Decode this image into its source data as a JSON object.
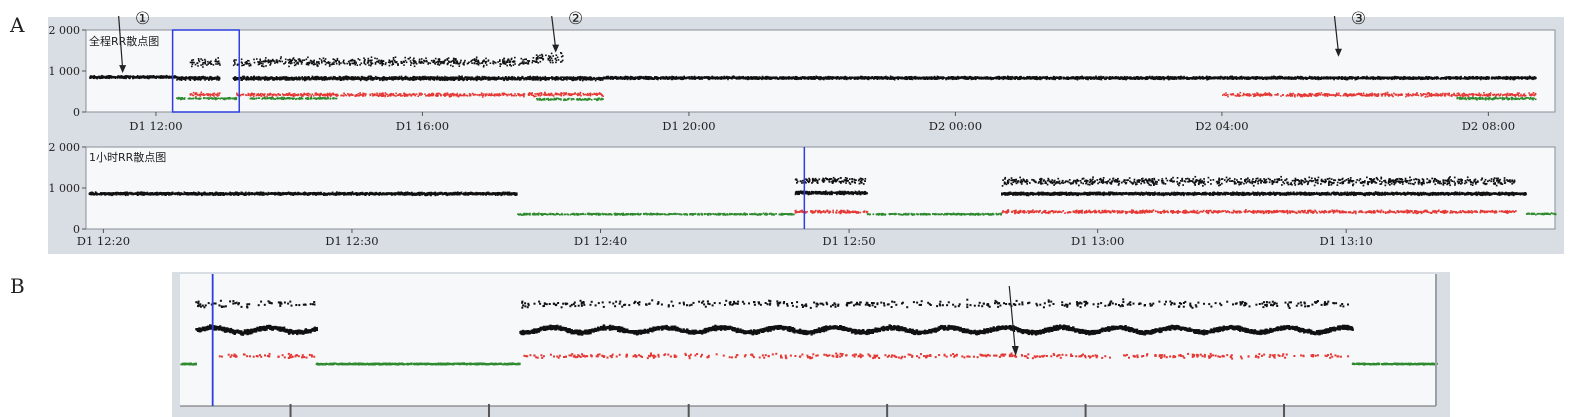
{
  "labels": {
    "panel_a": "A",
    "panel_b": "B"
  },
  "colors": {
    "panel_bg": "#d9dde4",
    "plot_bg": "#f7f8fa",
    "normal_beats": "#111111",
    "red_beats": "#e53935",
    "green_beats": "#2e8b2e",
    "cursor": "#2d3ee0"
  },
  "chart_data": [
    {
      "type": "scatter",
      "title": "全程RR散点图",
      "ylim": [
        0,
        2000
      ],
      "y_ticks": [
        "2 000",
        "1 000",
        "0"
      ],
      "x_ticks": [
        "D1 12:00",
        "D1 16:00",
        "D1 20:00",
        "D2 00:00",
        "D2 04:00",
        "D2 08:00"
      ],
      "x_tick_hours": [
        12,
        16,
        20,
        24,
        28,
        32
      ],
      "xlim_hours": [
        10.95,
        33.0
      ],
      "selection_window_hours": [
        12.25,
        13.25
      ],
      "markers": [
        {
          "label": "①",
          "x_hour": 11.5,
          "y": 850
        },
        {
          "label": "②",
          "x_hour": 18.0,
          "y": 1350
        },
        {
          "label": "③",
          "x_hour": 29.75,
          "y": 1250
        }
      ],
      "series": [
        {
          "name": "",
          "color": "normal",
          "segments": [
            [
              11.0,
              12.3,
              850,
              40
            ],
            [
              12.3,
              12.95,
              820,
              60
            ],
            [
              13.15,
              18.7,
              820,
              60
            ],
            [
              18.7,
              32.7,
              830,
              45
            ]
          ]
        },
        {
          "name": "",
          "color": "normal",
          "segments": [
            [
              12.5,
              12.95,
              1200,
              140
            ],
            [
              13.15,
              17.7,
              1220,
              140
            ],
            [
              17.7,
              18.1,
              1320,
              150
            ]
          ]
        },
        {
          "name": "",
          "color": "red",
          "segments": [
            [
              12.5,
              12.95,
              430,
              60
            ],
            [
              13.2,
              17.7,
              420,
              60
            ],
            [
              17.7,
              18.7,
              430,
              60
            ],
            [
              28.0,
              32.7,
              420,
              60
            ]
          ]
        },
        {
          "name": "",
          "color": "green",
          "segments": [
            [
              12.3,
              13.2,
              330,
              30
            ],
            [
              13.4,
              14.7,
              330,
              30
            ],
            [
              17.7,
              18.7,
              310,
              35
            ],
            [
              31.5,
              32.7,
              330,
              40
            ]
          ]
        }
      ]
    },
    {
      "type": "scatter",
      "title": "1小时RR散点图",
      "ylim": [
        0,
        2000
      ],
      "y_ticks": [
        "2 000",
        "1 000",
        "0"
      ],
      "x_ticks": [
        "D1  12:20",
        "D1  12:30",
        "D1  12:40",
        "D1  12:50",
        "D1  13:00",
        "D1  13:10"
      ],
      "x_tick_minutes": [
        20,
        30,
        40,
        50,
        60,
        70
      ],
      "xlim_minutes": [
        19.3,
        78.4
      ],
      "cursor_minute": 48.2,
      "series": [
        {
          "name": "",
          "color": "normal",
          "segments": [
            [
              19.4,
              36.6,
              860,
              45
            ],
            [
              47.8,
              50.7,
              880,
              50
            ],
            [
              56.1,
              77.2,
              860,
              45
            ]
          ]
        },
        {
          "name": "",
          "color": "normal",
          "segments": [
            [
              47.8,
              50.7,
              1180,
              120
            ],
            [
              56.1,
              76.8,
              1160,
              130
            ]
          ]
        },
        {
          "name": "",
          "color": "red",
          "segments": [
            [
              47.8,
              50.7,
              420,
              50
            ],
            [
              56.1,
              76.8,
              420,
              50
            ]
          ]
        },
        {
          "name": "",
          "color": "green",
          "segments": [
            [
              36.6,
              47.8,
              360,
              25
            ],
            [
              50.7,
              56.1,
              360,
              25
            ],
            [
              77.2,
              78.4,
              370,
              25
            ]
          ]
        }
      ]
    },
    {
      "type": "scatter",
      "title": "",
      "xlim": [
        0,
        100
      ],
      "cursor_x": 2.6,
      "arrow_x": 66.5,
      "series": [
        {
          "name": "",
          "color": "normal",
          "segments": [
            [
              1.2,
              10.8,
              0.48,
              0.05
            ],
            [
              27.0,
              93.3,
              0.48,
              0.05
            ]
          ]
        },
        {
          "name": "",
          "color": "normal",
          "segments": [
            [
              1.2,
              10.8,
              0.22,
              0.1
            ],
            [
              27.0,
              93.3,
              0.22,
              0.1
            ]
          ]
        },
        {
          "name": "",
          "color": "red",
          "segments": [
            [
              3.0,
              10.8,
              0.74,
              0.06
            ],
            [
              27.0,
              93.3,
              0.74,
              0.06
            ]
          ]
        },
        {
          "name": "",
          "color": "green",
          "segments": [
            [
              0,
              1.2,
              0.82,
              0.015
            ],
            [
              10.8,
              27.0,
              0.82,
              0.015
            ],
            [
              93.3,
              100,
              0.82,
              0.015
            ]
          ]
        }
      ]
    }
  ]
}
